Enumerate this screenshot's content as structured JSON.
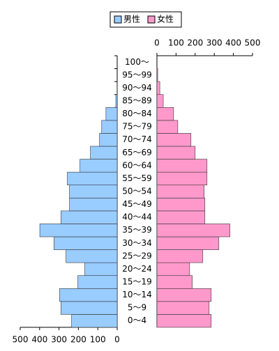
{
  "chart_data": {
    "type": "pyramid",
    "categories": [
      "0～4",
      "5～9",
      "10～14",
      "15～19",
      "20～24",
      "25～29",
      "30～34",
      "35～39",
      "40～44",
      "45～49",
      "50～54",
      "55～59",
      "60～64",
      "65～69",
      "70～74",
      "75～79",
      "80～84",
      "85～89",
      "90～94",
      "95～99",
      "100～"
    ],
    "series": [
      {
        "name": "男性",
        "color": "#99ccff",
        "values": [
          235,
          290,
          297,
          203,
          167,
          264,
          326,
          399,
          290,
          246,
          246,
          257,
          192,
          138,
          91,
          80,
          58,
          7,
          1,
          0,
          0
        ]
      },
      {
        "name": "女性",
        "color": "#ff99cc",
        "values": [
          284,
          273,
          284,
          185,
          171,
          240,
          324,
          382,
          251,
          251,
          247,
          262,
          262,
          200,
          178,
          109,
          87,
          33,
          15,
          4,
          0
        ]
      }
    ],
    "xlim": [
      0,
      500
    ],
    "xticks": [
      0,
      100,
      200,
      300,
      400,
      500
    ],
    "legend": "top"
  }
}
